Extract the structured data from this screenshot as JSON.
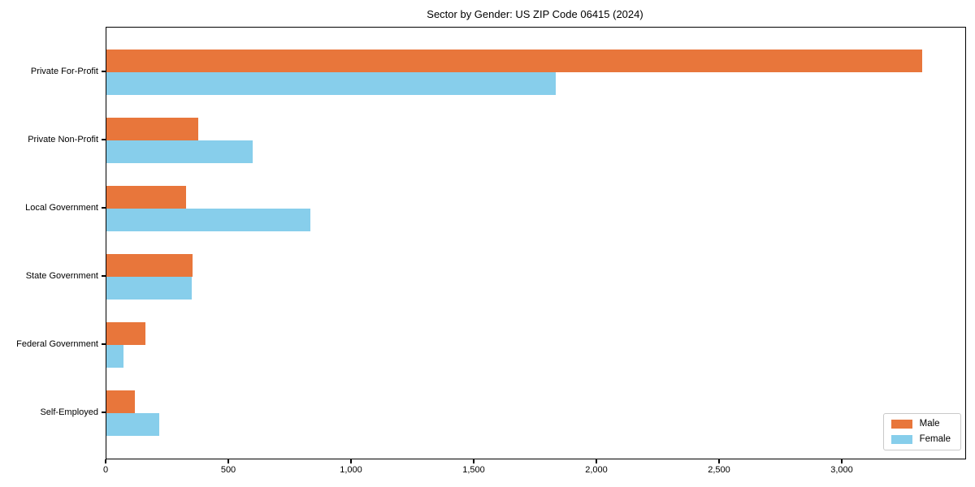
{
  "chart_data": {
    "type": "bar",
    "orientation": "horizontal",
    "title": "Sector by Gender: US ZIP Code 06415 (2024)",
    "categories": [
      "Private For-Profit",
      "Private Non-Profit",
      "Local Government",
      "State Government",
      "Federal Government",
      "Self-Employed"
    ],
    "series": [
      {
        "name": "Male",
        "color": "#E8763B",
        "values": [
          3325,
          375,
          325,
          350,
          160,
          115
        ]
      },
      {
        "name": "Female",
        "color": "#87CEEB",
        "values": [
          1830,
          595,
          830,
          347,
          70,
          215
        ]
      }
    ],
    "xlabel": "",
    "ylabel": "",
    "xlim": [
      0,
      3500
    ],
    "xticks": [
      0,
      500,
      1000,
      1500,
      2000,
      2500,
      3000
    ],
    "xtick_labels": [
      "0",
      "500",
      "1,000",
      "1,500",
      "2,000",
      "2,500",
      "3,000"
    ],
    "grid": false,
    "legend_position": "lower right"
  },
  "colors": {
    "axis": "#000000",
    "background": "#ffffff",
    "legend_border": "#c9c9c9"
  }
}
